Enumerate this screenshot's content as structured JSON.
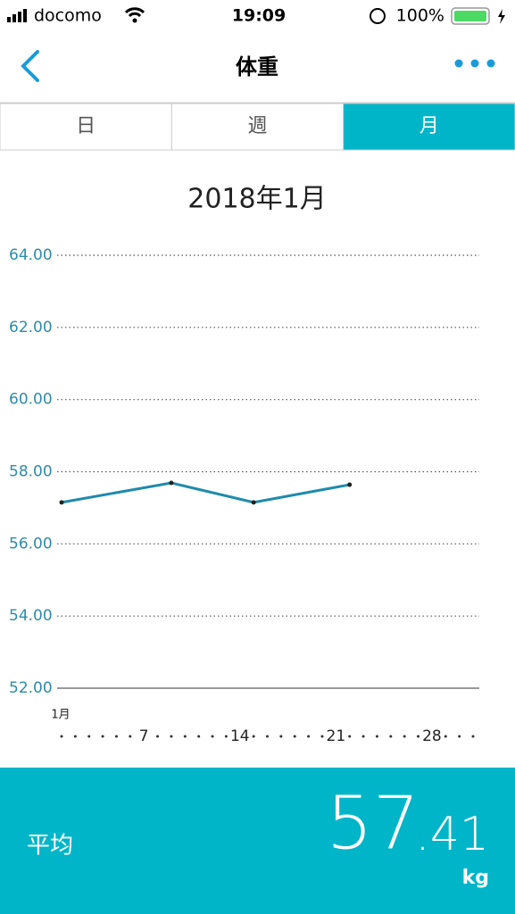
{
  "status_bar": {
    "carrier": "docomo",
    "time": "19:09",
    "battery": "100%"
  },
  "nav": {
    "title": "体重"
  },
  "tabs": [
    "日",
    "週",
    "月"
  ],
  "selected_tab": 2,
  "chart_data": {
    "type": "line",
    "title": "2018年1月",
    "x_label": "1月",
    "x": [
      1,
      9,
      15,
      22
    ],
    "series": [
      {
        "color": "#1f8bab",
        "values": [
          57.15,
          57.69,
          57.15,
          57.64
        ]
      }
    ],
    "xlim": [
      1,
      31
    ],
    "xticks": [
      7,
      14,
      21,
      28
    ],
    "ylim": [
      52,
      64
    ],
    "yticks": [
      {
        "value": 52,
        "label": "52.00"
      },
      {
        "value": 54,
        "label": "54.00"
      },
      {
        "value": 56,
        "label": "56.00"
      },
      {
        "value": 58,
        "label": "58.00"
      },
      {
        "value": 60,
        "label": "60.00"
      },
      {
        "value": 62,
        "label": "62.00"
      },
      {
        "value": 64,
        "label": "64.00"
      }
    ],
    "grid": true
  },
  "summary": {
    "label": "平均",
    "value_integer": "57",
    "value_decimal": ".41",
    "unit": "kg"
  }
}
